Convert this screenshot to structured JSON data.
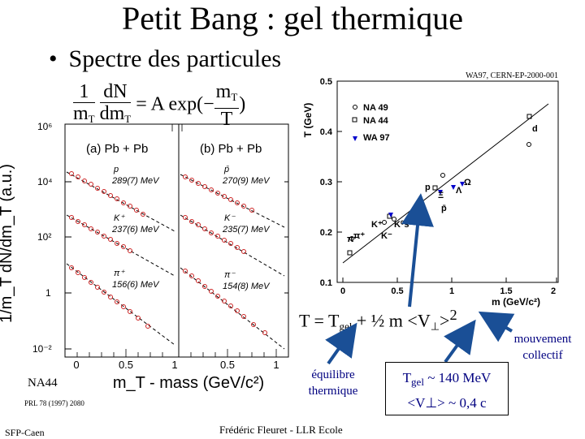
{
  "title": "Petit Bang : gel thermique",
  "bullet": "Spectre des particules",
  "formula": {
    "frac1_num": "1",
    "frac1_den": "m",
    "frac1_den_sub": "T",
    "frac2_num": "dN",
    "frac2_den": "dm",
    "frac2_den_sub": "T",
    "middle": "= A exp(−",
    "frac3_num": "m",
    "frac3_num_sub": "T",
    "frac3_den": "T",
    "end": ")"
  },
  "left_plot": {
    "ylabel": "1/m_T dN/dm_T (a.u.)",
    "xlabel": "m_T - mass (GeV/c²)",
    "yticks": [
      "10⁶",
      "10⁴",
      "10²",
      "1",
      "10⁻²"
    ],
    "xticks_a": [
      "0",
      "0.5",
      "1"
    ],
    "xticks_b": [
      "0.5",
      "1"
    ],
    "panel_a": "(a)  Pb + Pb",
    "panel_b": "(b)  Pb + Pb",
    "a_labels": [
      "p",
      "289(7) MeV",
      "K⁺",
      "237(6) MeV",
      "π⁺",
      "156(6) MeV"
    ],
    "b_labels": [
      "p̄",
      "270(9) MeV",
      "K⁻",
      "235(7) MeV",
      "π⁻",
      "154(8) MeV"
    ],
    "colors": {
      "points": "#cc2222",
      "fit": "#000000"
    }
  },
  "right_plot": {
    "header": "WA97, CERN-EP-2000-001",
    "ylabel": "T (GeV)",
    "xlabel": "m (GeV/c²)",
    "yticks": [
      "0.1",
      "0.2",
      "0.3",
      "0.4",
      "0.5"
    ],
    "xticks": [
      "0",
      "0.5",
      "1",
      "1.5",
      "2"
    ],
    "legend": [
      "NA 49",
      "NA 44",
      "WA 97"
    ],
    "point_labels": [
      "π⁻",
      "π⁺",
      "K⁺",
      "K⁻",
      "K⁰s",
      "p",
      "p̄",
      "Λ",
      "Ξ",
      "Ω",
      "d"
    ],
    "colors": {
      "wa97": "#0000cc",
      "line": "#000000"
    }
  },
  "equation": {
    "lhs": "T = T",
    "sub": "gel",
    "rhs": " + ½ m <V",
    "perp": "⊥",
    "tail": ">",
    "sup": "2"
  },
  "mouvement": [
    "mouvement",
    "collectif"
  ],
  "equilibre": [
    "équilibre",
    "thermique"
  ],
  "result": {
    "line1_pre": "T",
    "line1_sub": "gel",
    "line1_post": " ~ 140 MeV",
    "line2": "<V⊥> ~ 0,4 c"
  },
  "na44": "NA44",
  "prl": "PRL 78 (1997) 2080",
  "sfp": "SFP-Caen",
  "footer": "Frédéric Fleuret - LLR Ecole",
  "arrow_color": "#1a4f96"
}
